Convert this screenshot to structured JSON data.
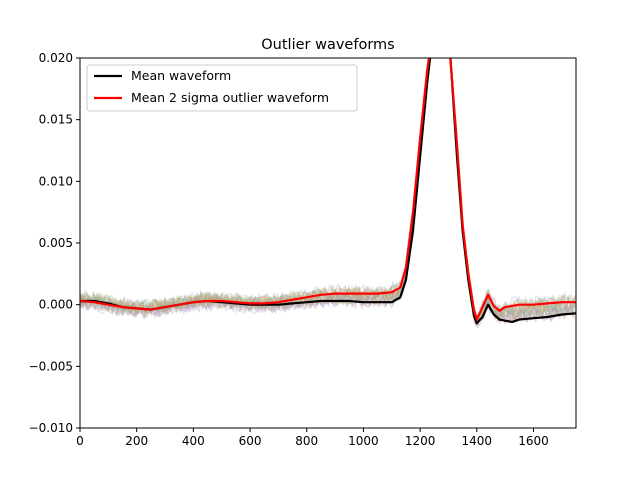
{
  "chart_data": {
    "type": "line",
    "title": "Outlier waveforms",
    "xlabel": "",
    "ylabel": "",
    "xlim": [
      0,
      1750
    ],
    "ylim": [
      -0.01,
      0.02
    ],
    "x_ticks": [
      0,
      200,
      400,
      600,
      800,
      1000,
      1200,
      1400,
      1600
    ],
    "x_tick_labels": [
      "0",
      "200",
      "400",
      "600",
      "800",
      "1000",
      "1200",
      "1400",
      "1600"
    ],
    "y_ticks": [
      -0.01,
      -0.005,
      0.0,
      0.005,
      0.01,
      0.015,
      0.02
    ],
    "y_tick_labels": [
      "−0.010",
      "−0.005",
      "0.000",
      "0.005",
      "0.010",
      "0.015",
      "0.020"
    ],
    "grid": false,
    "legend_position": "upper-left",
    "legend": [
      "Mean waveform",
      "Mean 2 sigma outlier waveform"
    ],
    "colors": {
      "mean": "#000000",
      "outlier": "#ff0000",
      "band": "#8a8a5a"
    },
    "series": [
      {
        "name": "Mean waveform",
        "color": "#000000",
        "x": [
          0,
          50,
          100,
          150,
          200,
          250,
          300,
          350,
          400,
          450,
          500,
          550,
          600,
          650,
          700,
          750,
          800,
          850,
          900,
          950,
          1000,
          1050,
          1100,
          1130,
          1150,
          1175,
          1200,
          1225,
          1240,
          1250,
          1300,
          1310,
          1330,
          1350,
          1370,
          1390,
          1400,
          1420,
          1440,
          1460,
          1480,
          1500,
          1525,
          1550,
          1600,
          1650,
          1700,
          1750
        ],
        "y": [
          0.0003,
          0.0003,
          0.0001,
          -0.0002,
          -0.0003,
          -0.0004,
          -0.0002,
          0.0,
          0.0002,
          0.0003,
          0.0002,
          0.0001,
          0.0,
          0.0,
          0.0,
          0.0001,
          0.0002,
          0.0003,
          0.0003,
          0.0003,
          0.0002,
          0.0002,
          0.0002,
          0.0006,
          0.002,
          0.006,
          0.012,
          0.018,
          0.021,
          0.023,
          0.022,
          0.019,
          0.012,
          0.006,
          0.002,
          -0.0009,
          -0.0015,
          -0.001,
          0.0,
          -0.0008,
          -0.0012,
          -0.0013,
          -0.0014,
          -0.0012,
          -0.0011,
          -0.001,
          -0.0008,
          -0.0007
        ]
      },
      {
        "name": "Mean 2 sigma outlier waveform",
        "color": "#ff0000",
        "x": [
          0,
          50,
          100,
          150,
          200,
          250,
          300,
          350,
          400,
          450,
          500,
          550,
          600,
          650,
          700,
          750,
          800,
          850,
          900,
          950,
          1000,
          1050,
          1100,
          1130,
          1150,
          1175,
          1200,
          1225,
          1240,
          1250,
          1300,
          1310,
          1330,
          1350,
          1370,
          1390,
          1400,
          1420,
          1440,
          1460,
          1480,
          1500,
          1525,
          1550,
          1600,
          1650,
          1700,
          1750
        ],
        "y": [
          0.0003,
          0.0002,
          0.0,
          -0.0002,
          -0.0003,
          -0.0004,
          -0.0002,
          0.0,
          0.0002,
          0.0003,
          0.0003,
          0.0002,
          0.0001,
          0.0001,
          0.0002,
          0.0004,
          0.0006,
          0.0008,
          0.0009,
          0.0009,
          0.0009,
          0.0009,
          0.001,
          0.0014,
          0.003,
          0.0075,
          0.0135,
          0.019,
          0.0215,
          0.023,
          0.022,
          0.019,
          0.013,
          0.0065,
          0.0025,
          -0.0005,
          -0.0012,
          -0.0002,
          0.0008,
          -0.0001,
          -0.0005,
          -0.0002,
          -0.0001,
          0.0,
          0.0,
          0.0001,
          0.0002,
          0.0002
        ]
      }
    ]
  }
}
